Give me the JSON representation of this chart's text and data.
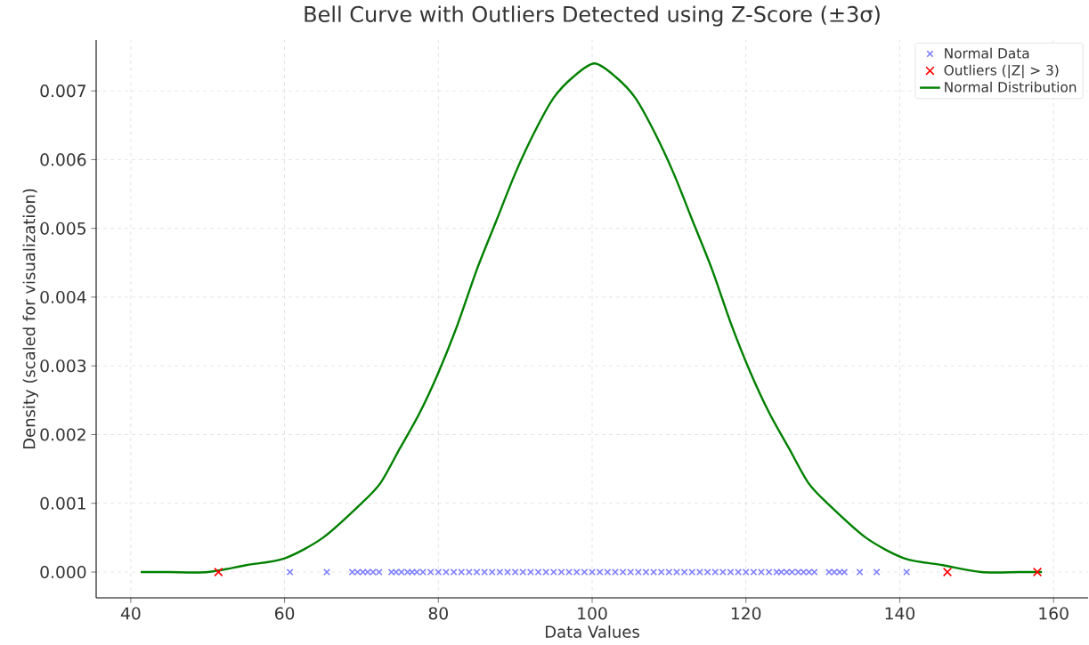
{
  "chart_data": {
    "type": "scatter",
    "title": "Bell Curve with Outliers Detected using Z-Score (±3σ)",
    "xlabel": "Data Values",
    "ylabel": "Density (scaled for visualization)",
    "xlim": [
      35.5,
      164.5
    ],
    "ylim": [
      -0.000375,
      0.00774
    ],
    "xticks": [
      40,
      60,
      80,
      100,
      120,
      140,
      160
    ],
    "yticks": [
      {
        "value": 0,
        "label": "0.000"
      },
      {
        "value": 0.001,
        "label": "0.001"
      },
      {
        "value": 0.002,
        "label": "0.002"
      },
      {
        "value": 0.003,
        "label": "0.003"
      },
      {
        "value": 0.004,
        "label": "0.004"
      },
      {
        "value": 0.005,
        "label": "0.005"
      },
      {
        "value": 0.006,
        "label": "0.006"
      },
      {
        "value": 0.007,
        "label": "0.007"
      }
    ],
    "grid": true,
    "legend": "top right",
    "series": [
      {
        "name": "Normal Data",
        "marker": "cross",
        "color": "#8080ff",
        "x": [
          60.7,
          65.5,
          68.8,
          69.5,
          70.2,
          70.8,
          71.5,
          72.3,
          73.9,
          74.5,
          75.2,
          76.0,
          76.6,
          77.2,
          78,
          79,
          80,
          81,
          82,
          83,
          84,
          85,
          86,
          87,
          88,
          89,
          90,
          91,
          92,
          93,
          94,
          95,
          96,
          97,
          98,
          99,
          100,
          101,
          102,
          103,
          104,
          105,
          106,
          107,
          108,
          109,
          110,
          111,
          112,
          113,
          114,
          115,
          116,
          117,
          118,
          119,
          120,
          121,
          122,
          123,
          124,
          124.6,
          125.3,
          126.0,
          126.8,
          127.5,
          128.2,
          128.9,
          130.8,
          131.5,
          132.2,
          132.8,
          134.8,
          137.0,
          140.9
        ],
        "values": [
          0,
          0,
          0,
          0,
          0,
          0,
          0,
          0,
          0,
          0,
          0,
          0,
          0,
          0,
          0,
          0,
          0,
          0,
          0,
          0,
          0,
          0,
          0,
          0,
          0,
          0,
          0,
          0,
          0,
          0,
          0,
          0,
          0,
          0,
          0,
          0,
          0,
          0,
          0,
          0,
          0,
          0,
          0,
          0,
          0,
          0,
          0,
          0,
          0,
          0,
          0,
          0,
          0,
          0,
          0,
          0,
          0,
          0,
          0,
          0,
          0,
          0,
          0,
          0,
          0,
          0,
          0,
          0,
          0,
          0,
          0,
          0,
          0,
          0,
          0
        ]
      },
      {
        "name": "Outliers (|Z| > 3)",
        "marker": "cross",
        "color": "#ff0000",
        "x": [
          51.4,
          146.2,
          157.9
        ],
        "values": [
          0,
          0,
          0
        ]
      },
      {
        "name": "Normal Distribution",
        "type": "line",
        "marker": "none",
        "line_style": "solid",
        "color": "#008000",
        "x": [
          41.3,
          45,
          50,
          55,
          60,
          65,
          70,
          72.5,
          75,
          77.5,
          80,
          82.5,
          85,
          87.5,
          90,
          92.5,
          95,
          97.5,
          100.3,
          103.1,
          105.6,
          108.1,
          110.6,
          113.1,
          115.6,
          118.1,
          120.6,
          123.1,
          125.6,
          128.1,
          130.6,
          135.6,
          140.6,
          145.6,
          150.6,
          155.6,
          158.5
        ],
        "values": [
          0.0,
          0.0,
          0.0,
          0.0001,
          0.0002,
          0.0005,
          0.001,
          0.0013,
          0.0018,
          0.0023,
          0.0029,
          0.0036,
          0.0044,
          0.0051,
          0.0058,
          0.0064,
          0.0069,
          0.0072,
          0.0074,
          0.0072,
          0.0069,
          0.0064,
          0.0058,
          0.0051,
          0.0044,
          0.0036,
          0.0029,
          0.0023,
          0.0018,
          0.0013,
          0.001,
          0.0005,
          0.0002,
          0.0001,
          0.0,
          0.0,
          0.0
        ]
      }
    ]
  }
}
